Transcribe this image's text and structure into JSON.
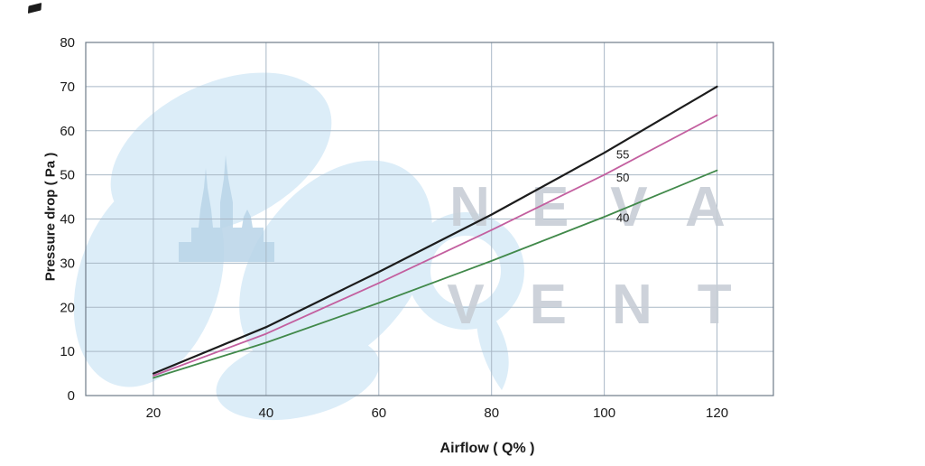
{
  "figure": {
    "watermark_line1": "NEVA",
    "watermark_line2": "VENT"
  },
  "chart_data": {
    "type": "line",
    "title": "",
    "xlabel": "Airflow （Q% ）",
    "ylabel": "Pressure drop（Pa）",
    "xlabel_display": "Airflow ( Q% )",
    "ylabel_display": "Pressure drop ( Pa )",
    "x_ticks": [
      20,
      40,
      60,
      80,
      100,
      120
    ],
    "y_ticks": [
      0,
      10,
      20,
      30,
      40,
      50,
      60,
      70,
      80
    ],
    "xlim": [
      8,
      130
    ],
    "ylim": [
      0,
      80
    ],
    "grid": true,
    "legend": "inline-labels",
    "x": [
      20,
      40,
      60,
      80,
      100,
      120
    ],
    "series": [
      {
        "name": "55",
        "color": "#1c1c1c",
        "width": 2.2,
        "values": [
          5,
          15.5,
          28,
          41,
          55,
          70
        ],
        "label": {
          "text": "55",
          "x": 101.8,
          "y": 54.5
        }
      },
      {
        "name": "50",
        "color": "#c35f9f",
        "width": 1.8,
        "values": [
          4.5,
          14,
          25.5,
          37.5,
          50,
          63.5
        ],
        "label": {
          "text": "50",
          "x": 101.8,
          "y": 49.3
        }
      },
      {
        "name": "40",
        "color": "#41894a",
        "width": 1.8,
        "values": [
          4,
          12,
          21,
          30.5,
          40.5,
          51
        ],
        "label": {
          "text": "40",
          "x": 101.8,
          "y": 40.2
        }
      }
    ],
    "style": {
      "grid_color": "#a9b8c6",
      "border_color": "#6e7b88",
      "tick_color": "#1a1a1a",
      "watermark_color": "#c8ced6"
    }
  }
}
